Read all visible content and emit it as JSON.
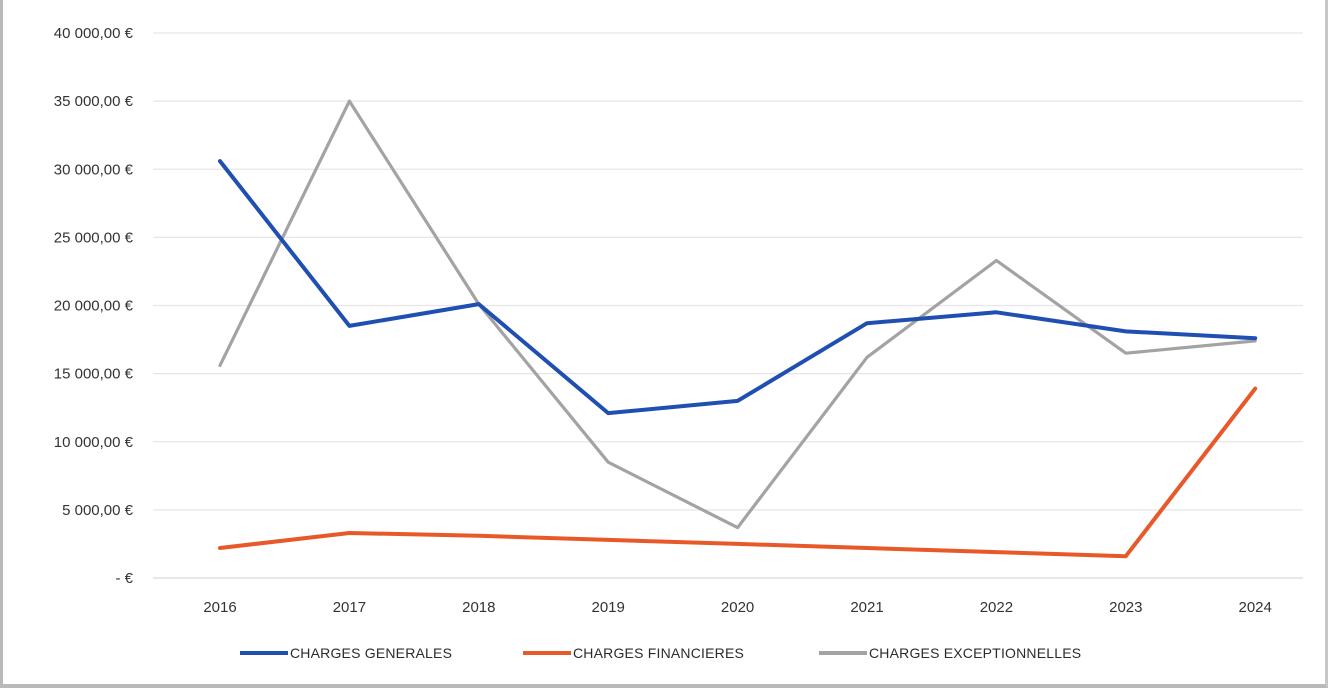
{
  "chart_data": {
    "type": "line",
    "categories": [
      "2016",
      "2017",
      "2018",
      "2019",
      "2020",
      "2021",
      "2022",
      "2023",
      "2024"
    ],
    "y_tick_labels": [
      "40 000,00 €",
      "35 000,00 €",
      "30 000,00 €",
      "25 000,00 €",
      "20 000,00 €",
      "15 000,00 €",
      "10 000,00 €",
      "5 000,00 €",
      "-   €"
    ],
    "y_ticks": [
      40000,
      35000,
      30000,
      25000,
      20000,
      15000,
      10000,
      5000,
      0
    ],
    "ylim": [
      0,
      40000
    ],
    "grid": true,
    "legend_position": "bottom",
    "series": [
      {
        "name": "CHARGES GENERALES",
        "color": "#1f4fb0",
        "values": [
          30600,
          18500,
          20100,
          12100,
          13000,
          18700,
          19500,
          18100,
          17600
        ]
      },
      {
        "name": "CHARGES FINANCIERES",
        "color": "#e8592a",
        "values": [
          2200,
          3300,
          3100,
          2800,
          2500,
          2200,
          1900,
          1600,
          13900
        ]
      },
      {
        "name": "CHARGES EXCEPTIONNELLES",
        "color": "#a3a3a3",
        "values": [
          15600,
          35000,
          20100,
          8500,
          3700,
          16200,
          23300,
          16500,
          17400
        ]
      }
    ]
  }
}
